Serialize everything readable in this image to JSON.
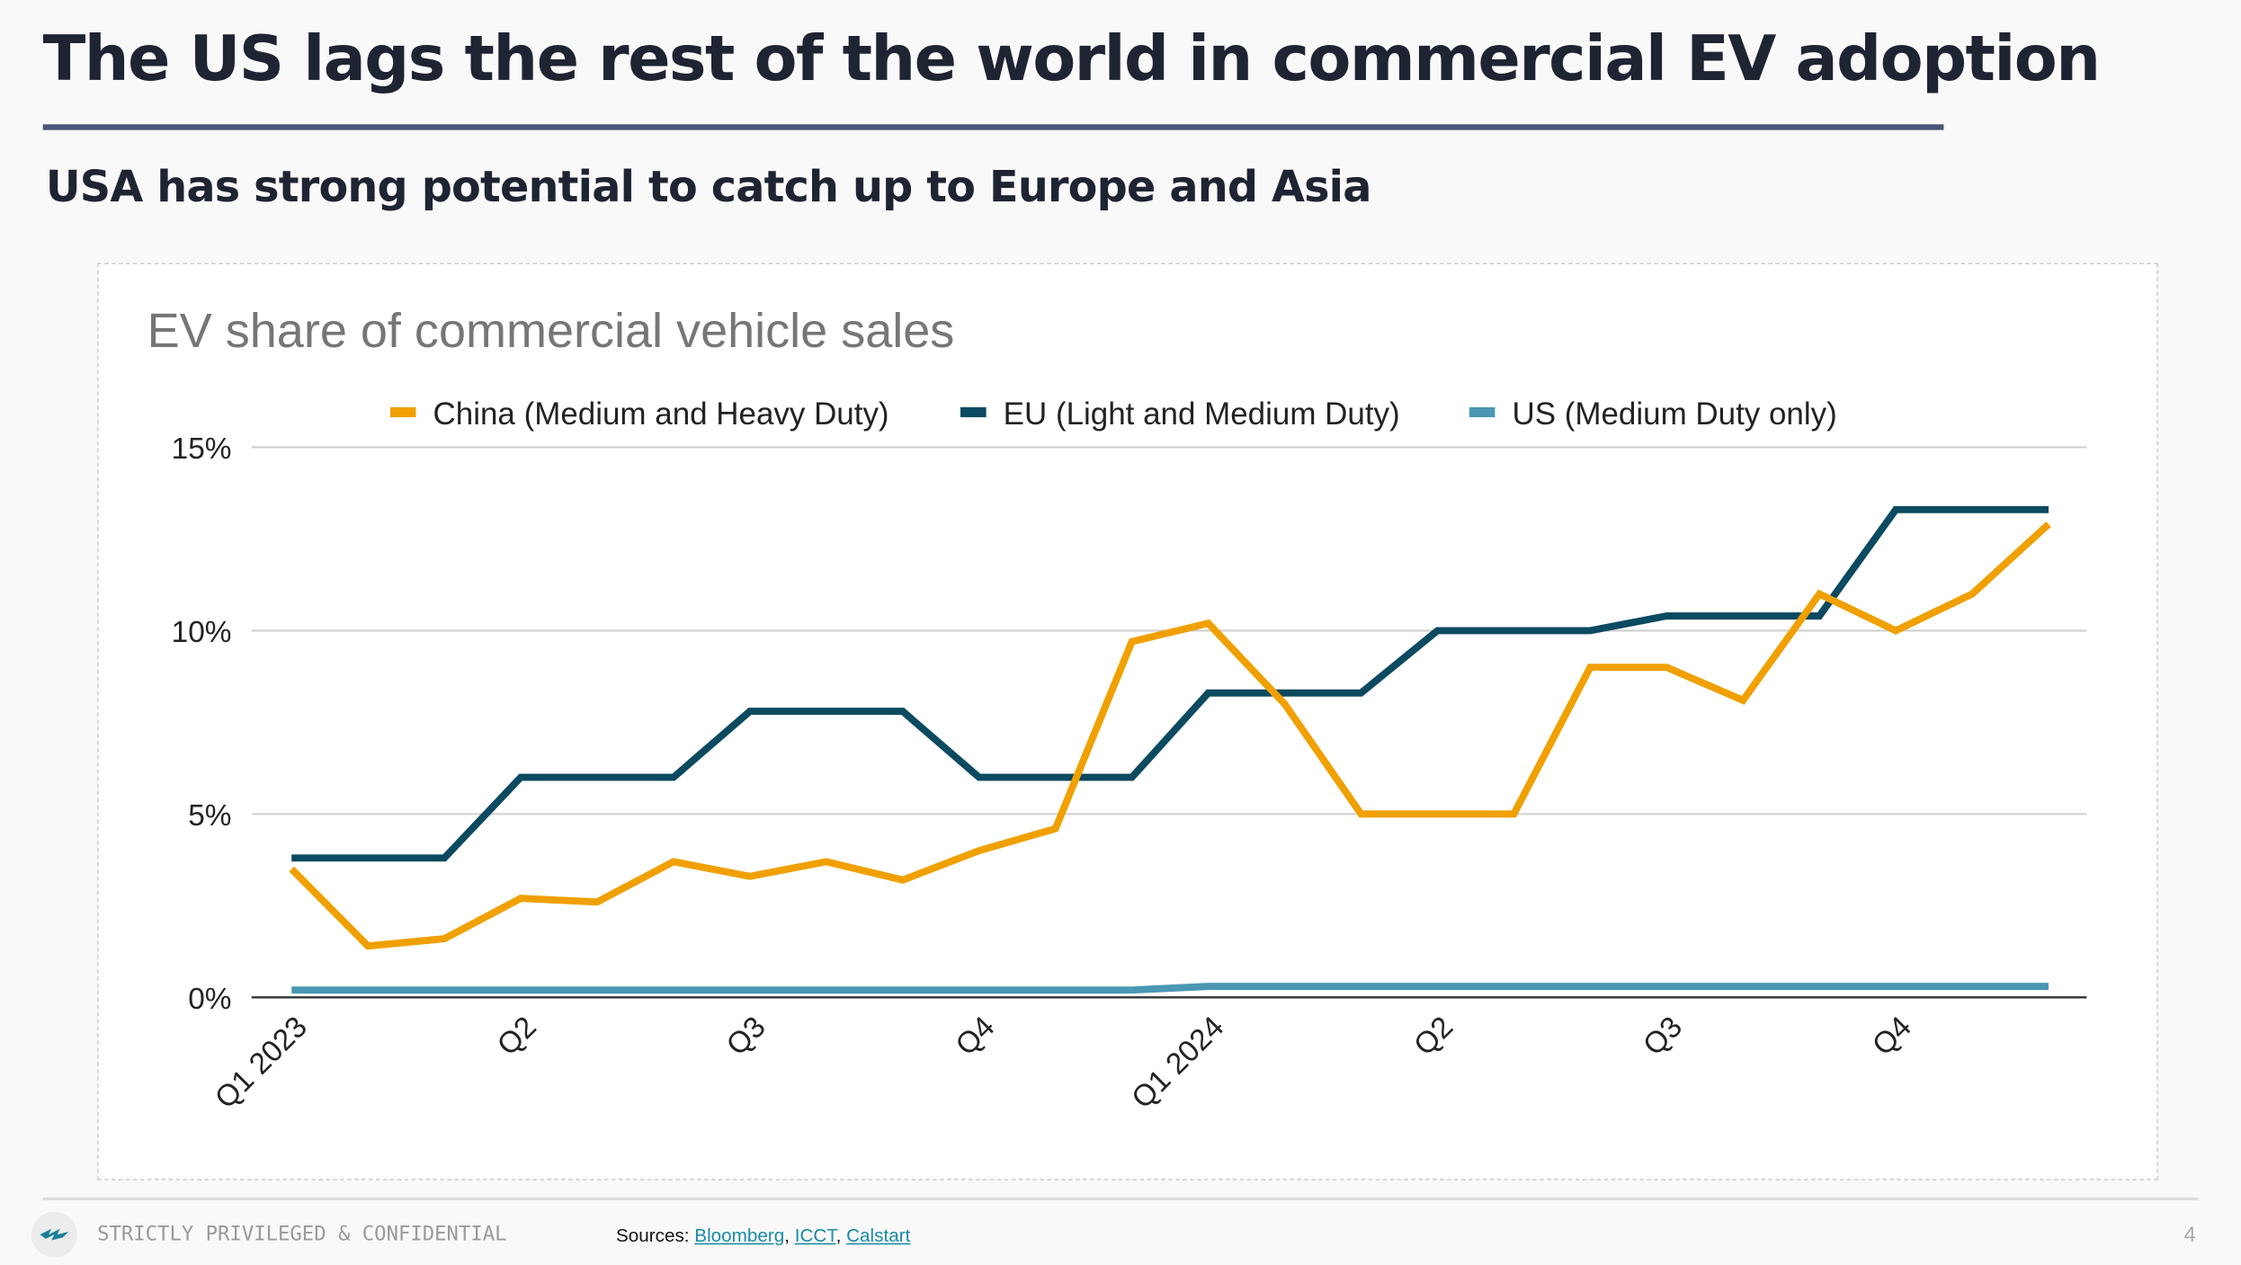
{
  "title": "The US lags the rest of the world in commercial EV adoption",
  "subtitle": "USA has strong potential to catch up to Europe and Asia",
  "footer": {
    "confidential": "STRICTLY PRIVILEGED & CONFIDENTIAL",
    "sources_label": "Sources:",
    "sources": [
      "Bloomberg",
      "ICCT",
      "Calstart"
    ],
    "page_number": "4"
  },
  "chart_data": {
    "type": "line",
    "title": "EV share of commercial vehicle sales",
    "xlabel": "",
    "ylabel": "",
    "ylim": [
      0,
      15
    ],
    "yticks": [
      "0%",
      "5%",
      "10%",
      "15%"
    ],
    "ytick_values": [
      0,
      5,
      10,
      15
    ],
    "grid": true,
    "legend": "top",
    "x_tick_labels": [
      {
        "index": 0,
        "label": "Q1 2023"
      },
      {
        "index": 3,
        "label": "Q2"
      },
      {
        "index": 6,
        "label": "Q3"
      },
      {
        "index": 9,
        "label": "Q4"
      },
      {
        "index": 12,
        "label": "Q1 2024"
      },
      {
        "index": 15,
        "label": "Q2"
      },
      {
        "index": 18,
        "label": "Q3"
      },
      {
        "index": 21,
        "label": "Q4"
      }
    ],
    "series": [
      {
        "name": "China (Medium and Heavy Duty)",
        "color": "#f0a000",
        "values": [
          3.5,
          1.4,
          1.6,
          2.7,
          2.6,
          3.7,
          3.3,
          3.7,
          3.2,
          4.0,
          4.6,
          9.7,
          10.2,
          8.0,
          5.0,
          5.0,
          5.0,
          9.0,
          9.0,
          8.1,
          11.0,
          10.0,
          11.0,
          12.9
        ]
      },
      {
        "name": "EU (Light and Medium Duty)",
        "color": "#0b4a60",
        "values": [
          3.8,
          3.8,
          3.8,
          6.0,
          6.0,
          6.0,
          7.8,
          7.8,
          7.8,
          6.0,
          6.0,
          6.0,
          8.3,
          8.3,
          8.3,
          10.0,
          10.0,
          10.0,
          10.4,
          10.4,
          10.4,
          13.3,
          13.3,
          13.3
        ]
      },
      {
        "name": "US (Medium Duty only)",
        "color": "#4a97b3",
        "values": [
          0.2,
          0.2,
          0.2,
          0.2,
          0.2,
          0.2,
          0.2,
          0.2,
          0.2,
          0.2,
          0.2,
          0.2,
          0.3,
          0.3,
          0.3,
          0.3,
          0.3,
          0.3,
          0.3,
          0.3,
          0.3,
          0.3,
          0.3,
          0.3
        ]
      }
    ]
  }
}
